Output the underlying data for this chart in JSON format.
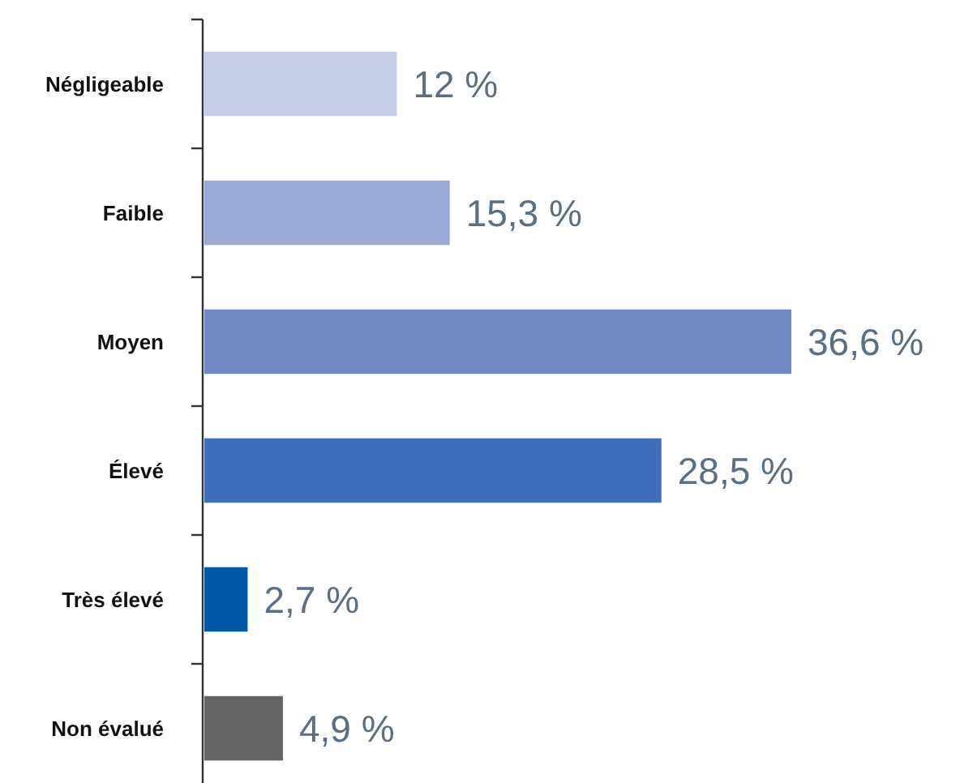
{
  "chart_data": {
    "type": "bar",
    "orientation": "horizontal",
    "categories": [
      "Négligeable",
      "Faible",
      "Moyen",
      "Élevé",
      "Très élevé",
      "Non évalué"
    ],
    "values": [
      12,
      15.3,
      36.6,
      28.5,
      2.7,
      4.9
    ],
    "colors": [
      "#c5cce8",
      "#9aa8d8",
      "#6f87c4",
      "#3f6fba",
      "#0058a8",
      "#646464"
    ],
    "value_labels": [
      "12 %",
      "15,3 %",
      "36,6 %",
      "28,5 %",
      "2,7 %",
      "4,9 %"
    ],
    "tick_labels": "y"
  }
}
